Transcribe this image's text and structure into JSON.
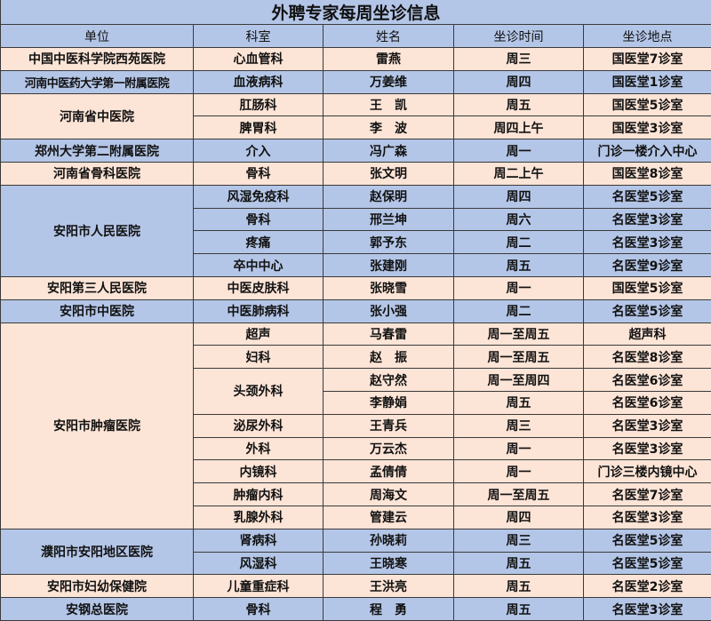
{
  "title": "外聘专家每周坐诊信息",
  "columns": [
    "单位",
    "科室",
    "姓名",
    "坐诊时间",
    "坐诊地点"
  ],
  "colors": {
    "blue": "#b4c6e7",
    "peach": "#fce4d6"
  },
  "groups": [
    {
      "unit": "中国中医科学院西苑医院",
      "bg": "peach",
      "depts": [
        {
          "name": "心血管科",
          "doctors": [
            {
              "name": "雷燕",
              "time": "周三",
              "place": "国医堂7诊室"
            }
          ]
        }
      ]
    },
    {
      "unit": "河南中医药大学第一附属医院",
      "bg": "blue",
      "depts": [
        {
          "name": "血液病科",
          "doctors": [
            {
              "name": "万姜维",
              "time": "周四",
              "place": "国医堂1诊室"
            }
          ]
        }
      ]
    },
    {
      "unit": "河南省中医院",
      "bg": "peach",
      "depts": [
        {
          "name": "肛肠科",
          "doctors": [
            {
              "name": "王　凯",
              "time": "周五",
              "place": "国医堂5诊室"
            }
          ]
        },
        {
          "name": "脾胃科",
          "doctors": [
            {
              "name": "李　波",
              "time": "周四上午",
              "place": "国医堂3诊室"
            }
          ]
        }
      ]
    },
    {
      "unit": "郑州大学第二附属医院",
      "bg": "blue",
      "depts": [
        {
          "name": "介入",
          "doctors": [
            {
              "name": "冯广森",
              "time": "周一",
              "place": "门诊一楼介入中心"
            }
          ]
        }
      ]
    },
    {
      "unit": "河南省骨科医院",
      "bg": "peach",
      "depts": [
        {
          "name": "骨科",
          "doctors": [
            {
              "name": "张文明",
              "time": "周二上午",
              "place": "国医堂8诊室"
            }
          ]
        }
      ]
    },
    {
      "unit": "安阳市人民医院",
      "bg": "blue",
      "depts": [
        {
          "name": "风湿免疫科",
          "doctors": [
            {
              "name": "赵保明",
              "time": "周四",
              "place": "名医堂5诊室"
            }
          ]
        },
        {
          "name": "骨科",
          "doctors": [
            {
              "name": "邢兰坤",
              "time": "周六",
              "place": "名医堂3诊室"
            }
          ]
        },
        {
          "name": "疼痛",
          "doctors": [
            {
              "name": "郭予东",
              "time": "周二",
              "place": "名医堂3诊室"
            }
          ]
        },
        {
          "name": "卒中中心",
          "doctors": [
            {
              "name": "张建刚",
              "time": "周五",
              "place": "名医堂9诊室"
            }
          ]
        }
      ]
    },
    {
      "unit": "安阳第三人民医院",
      "bg": "peach",
      "depts": [
        {
          "name": "中医皮肤科",
          "doctors": [
            {
              "name": "张晓雪",
              "time": "周一",
              "place": "国医堂5诊室"
            }
          ]
        }
      ]
    },
    {
      "unit": "安阳市中医院",
      "bg": "blue",
      "depts": [
        {
          "name": "中医肺病科",
          "doctors": [
            {
              "name": "张小强",
              "time": "周二",
              "place": "名医堂5诊室"
            }
          ]
        }
      ]
    },
    {
      "unit": "安阳市肿瘤医院",
      "bg": "peach",
      "depts": [
        {
          "name": "超声",
          "doctors": [
            {
              "name": "马春雷",
              "time": "周一至周五",
              "place": "超声科"
            }
          ]
        },
        {
          "name": "妇科",
          "doctors": [
            {
              "name": "赵　振",
              "time": "周一至周五",
              "place": "名医堂8诊室"
            }
          ]
        },
        {
          "name": "头颈外科",
          "doctors": [
            {
              "name": "赵守然",
              "time": "周一至周四",
              "place": "名医堂6诊室"
            },
            {
              "name": "李静娟",
              "time": "周五",
              "place": "名医堂6诊室"
            }
          ]
        },
        {
          "name": "泌尿外科",
          "doctors": [
            {
              "name": "王青兵",
              "time": "周三",
              "place": "名医堂3诊室"
            }
          ]
        },
        {
          "name": "外科",
          "doctors": [
            {
              "name": "万云杰",
              "time": "周一",
              "place": "名医堂3诊室"
            }
          ]
        },
        {
          "name": "内镜科",
          "doctors": [
            {
              "name": "孟倩倩",
              "time": "周一",
              "place": "门诊三楼内镜中心"
            }
          ]
        },
        {
          "name": "肿瘤内科",
          "doctors": [
            {
              "name": "周海文",
              "time": "周一至周五",
              "place": "名医堂7诊室"
            }
          ]
        },
        {
          "name": "乳腺外科",
          "doctors": [
            {
              "name": "管建云",
              "time": "周四",
              "place": "名医堂3诊室"
            }
          ]
        }
      ]
    },
    {
      "unit": "濮阳市安阳地区医院",
      "bg": "blue",
      "depts": [
        {
          "name": "肾病科",
          "doctors": [
            {
              "name": "孙晓莉",
              "time": "周三",
              "place": "名医堂5诊室"
            }
          ]
        },
        {
          "name": "风湿科",
          "doctors": [
            {
              "name": "王晓寒",
              "time": "周五",
              "place": "名医堂5诊室"
            }
          ]
        }
      ]
    },
    {
      "unit": "安阳市妇幼保健院",
      "bg": "peach",
      "depts": [
        {
          "name": "儿童重症科",
          "doctors": [
            {
              "name": "王洪亮",
              "time": "周五",
              "place": "名医堂2诊室"
            }
          ]
        }
      ]
    },
    {
      "unit": "安钢总医院",
      "bg": "blue",
      "depts": [
        {
          "name": "骨科",
          "doctors": [
            {
              "name": "程　勇",
              "time": "周五",
              "place": "名医堂3诊室"
            }
          ]
        }
      ]
    }
  ]
}
